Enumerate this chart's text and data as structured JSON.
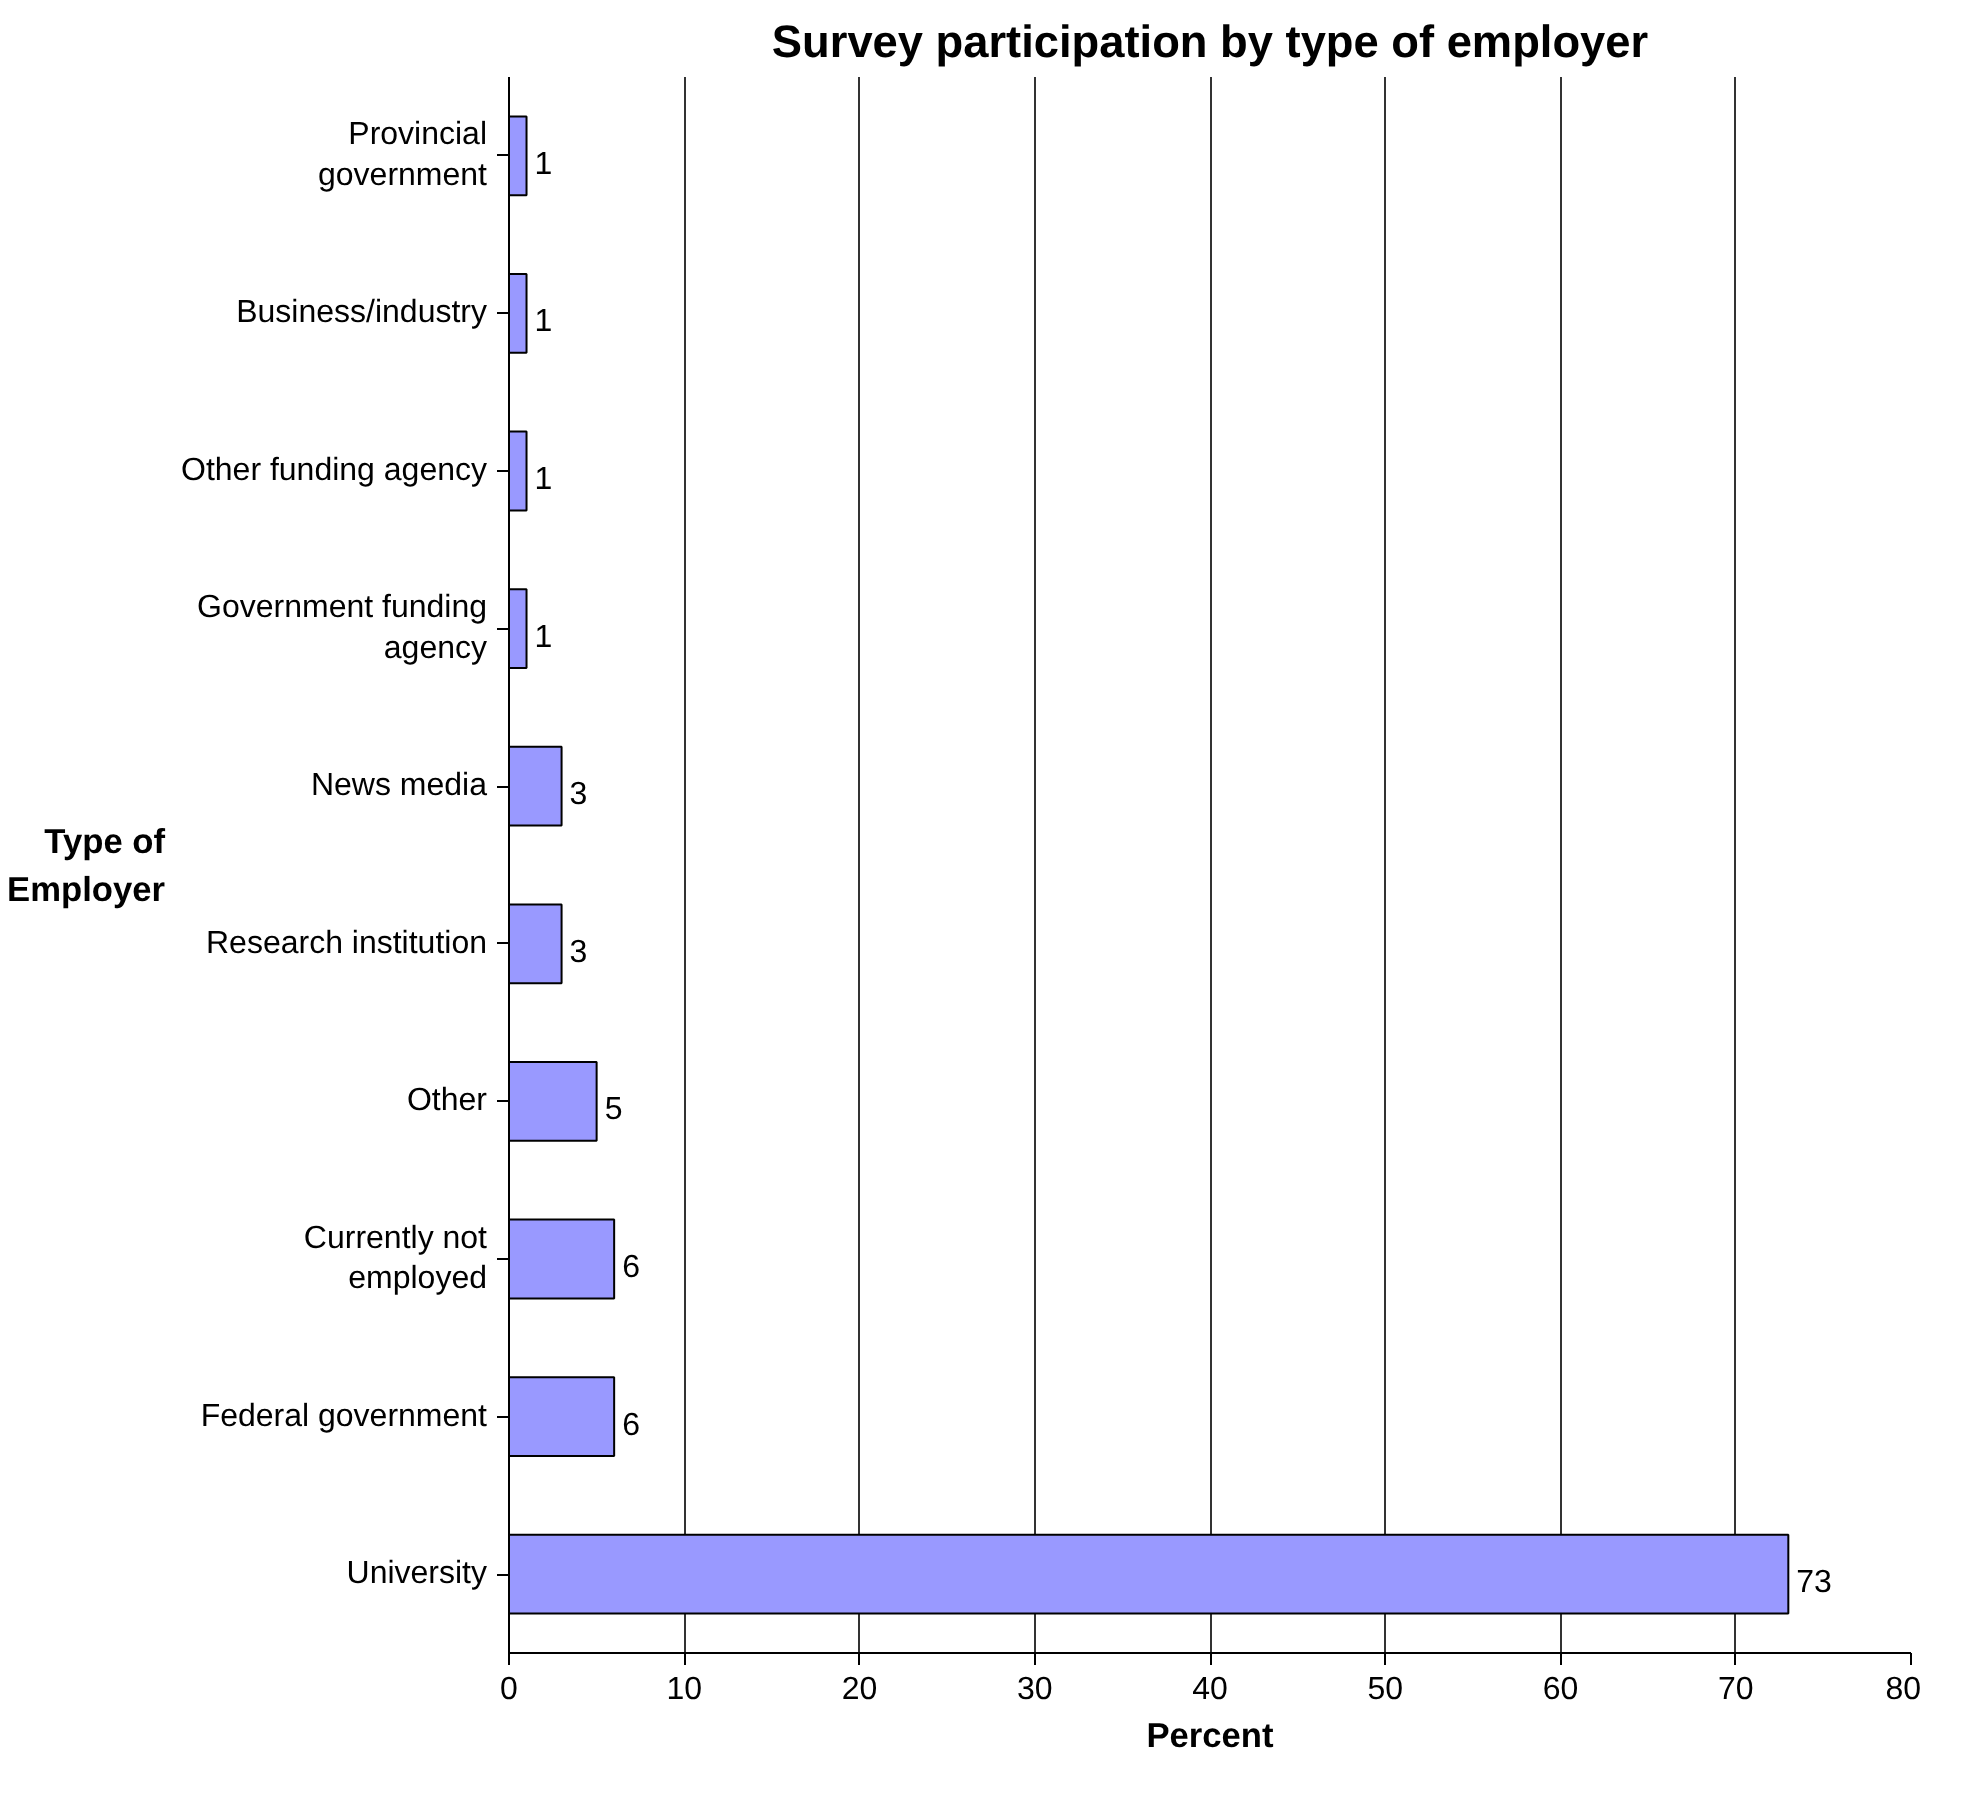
{
  "chart_data": {
    "type": "bar",
    "orientation": "horizontal",
    "title": "Survey participation by type of employer",
    "xlabel": "Percent",
    "ylabel": "Type of Employer",
    "categories": [
      "Provincial government",
      "Business/industry",
      "Other funding agency",
      "Government funding agency",
      "News media",
      "Research institution",
      "Other",
      "Currently not employed",
      "Federal government",
      "University"
    ],
    "values": [
      1,
      1,
      1,
      1,
      3,
      3,
      5,
      6,
      6,
      73
    ],
    "color": "#9999ff",
    "xlim": [
      0,
      80
    ],
    "xticks": [
      0,
      10,
      20,
      30,
      40,
      50,
      60,
      70,
      80
    ],
    "grid": "x",
    "data_labels": true
  }
}
